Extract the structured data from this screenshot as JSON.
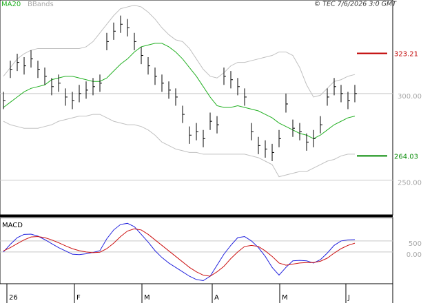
{
  "chart_data": [
    {
      "type": "ohlc",
      "legend": [
        "MA20",
        "BBands"
      ],
      "credit": "© TEC 7/6/2026 3:0 GMT",
      "close": [
        296,
        314,
        318,
        316,
        320,
        314,
        310,
        304,
        306,
        298,
        296,
        300,
        302,
        304,
        306,
        330,
        336,
        340,
        338,
        330,
        322,
        316,
        310,
        306,
        302,
        298,
        288,
        276,
        278,
        274,
        284,
        282,
        310,
        308,
        304,
        298,
        278,
        270,
        268,
        266,
        274,
        294,
        280,
        278,
        272,
        274,
        282,
        298,
        304,
        300,
        296,
        300
      ],
      "high": [
        301,
        319,
        323,
        321,
        325,
        319,
        315,
        309,
        311,
        303,
        301,
        305,
        307,
        309,
        311,
        335,
        341,
        345,
        343,
        335,
        327,
        321,
        315,
        311,
        307,
        303,
        293,
        281,
        283,
        279,
        289,
        287,
        315,
        313,
        309,
        303,
        283,
        275,
        273,
        271,
        279,
        300,
        285,
        283,
        277,
        279,
        287,
        303,
        309,
        305,
        301,
        305
      ],
      "low": [
        291,
        309,
        313,
        311,
        315,
        309,
        305,
        299,
        301,
        293,
        291,
        295,
        297,
        299,
        301,
        325,
        331,
        335,
        333,
        325,
        317,
        311,
        305,
        301,
        297,
        293,
        283,
        271,
        273,
        269,
        279,
        277,
        305,
        303,
        299,
        293,
        273,
        265,
        263,
        261,
        269,
        289,
        275,
        273,
        267,
        269,
        277,
        293,
        299,
        295,
        291,
        295
      ],
      "ma20": [
        292,
        295,
        298,
        301,
        303,
        304,
        305,
        308,
        309,
        310,
        310,
        309,
        308,
        307,
        307,
        309,
        313,
        317,
        320,
        324,
        327,
        328,
        329,
        329,
        327,
        324,
        320,
        315,
        310,
        304,
        298,
        293,
        292,
        292,
        293,
        292,
        291,
        290,
        288,
        286,
        283,
        281,
        279,
        277,
        276,
        274,
        276,
        279,
        282,
        284,
        286,
        287
      ],
      "upper": [
        310,
        315,
        320,
        323,
        325,
        326,
        326,
        326,
        326,
        326,
        326,
        326,
        327,
        330,
        335,
        340,
        345,
        349,
        350,
        351,
        350,
        347,
        343,
        338,
        334,
        331,
        330,
        326,
        320,
        314,
        310,
        309,
        312,
        316,
        318,
        318,
        319,
        320,
        321,
        322,
        324,
        324,
        322,
        315,
        305,
        298,
        299,
        303,
        307,
        308,
        310,
        311
      ],
      "lower": [
        284,
        282,
        281,
        280,
        280,
        280,
        281,
        282,
        284,
        285,
        286,
        287,
        287,
        288,
        288,
        286,
        284,
        283,
        282,
        282,
        281,
        279,
        276,
        272,
        270,
        268,
        267,
        266,
        266,
        265,
        265,
        265,
        265,
        265,
        265,
        265,
        264,
        263,
        261,
        259,
        252,
        253,
        254,
        255,
        255,
        257,
        259,
        261,
        262,
        264,
        265,
        265
      ],
      "colors": {
        "bar": "#000000",
        "ma20": "#22b022",
        "bands": "#c0c0c0"
      },
      "ylim": [
        230,
        354
      ],
      "yticks": [
        {
          "value": 250,
          "label": "250.00"
        },
        {
          "value": 300,
          "label": "300.00"
        }
      ],
      "levels": [
        {
          "value": 323.21,
          "label": "323.21",
          "color": "#c00000"
        },
        {
          "value": 264.03,
          "label": "264.03",
          "color": "#008800"
        }
      ],
      "xlim": [
        -0.5,
        56.5
      ],
      "xticks": [
        {
          "value": 0.5,
          "label": "26"
        },
        {
          "value": 10.3,
          "label": "F"
        },
        {
          "value": 20.1,
          "label": "M"
        },
        {
          "value": 30.3,
          "label": "A"
        },
        {
          "value": 40.1,
          "label": "M"
        },
        {
          "value": 49.7,
          "label": "J"
        }
      ],
      "grid": true
    },
    {
      "type": "line",
      "title": "MACD",
      "series": [
        {
          "color": "#2222dd",
          "values": [
            0,
            350,
            650,
            800,
            810,
            720,
            560,
            380,
            200,
            50,
            -100,
            -120,
            -80,
            -20,
            60,
            600,
            1000,
            1250,
            1300,
            1150,
            800,
            450,
            60,
            -250,
            -500,
            -700,
            -900,
            -1100,
            -1250,
            -1300,
            -1100,
            -600,
            -100,
            300,
            650,
            700,
            500,
            200,
            -200,
            -700,
            -1050,
            -700,
            -400,
            -380,
            -400,
            -500,
            -350,
            -50,
            300,
            500,
            550,
            560
          ]
        },
        {
          "color": "#cc1111",
          "values": [
            50,
            200,
            380,
            550,
            680,
            700,
            650,
            550,
            420,
            280,
            150,
            60,
            0,
            -30,
            -10,
            150,
            400,
            700,
            950,
            1050,
            1000,
            800,
            550,
            300,
            50,
            -200,
            -450,
            -700,
            -900,
            -1050,
            -1100,
            -900,
            -650,
            -300,
            0,
            250,
            300,
            250,
            50,
            -200,
            -500,
            -600,
            -550,
            -500,
            -480,
            -480,
            -420,
            -280,
            -50,
            150,
            300,
            400
          ]
        }
      ],
      "ylim": [
        -1440,
        1560
      ],
      "yticks": [
        {
          "value": 0,
          "label": "0.00"
        },
        500
      ],
      "grid": true
    }
  ]
}
